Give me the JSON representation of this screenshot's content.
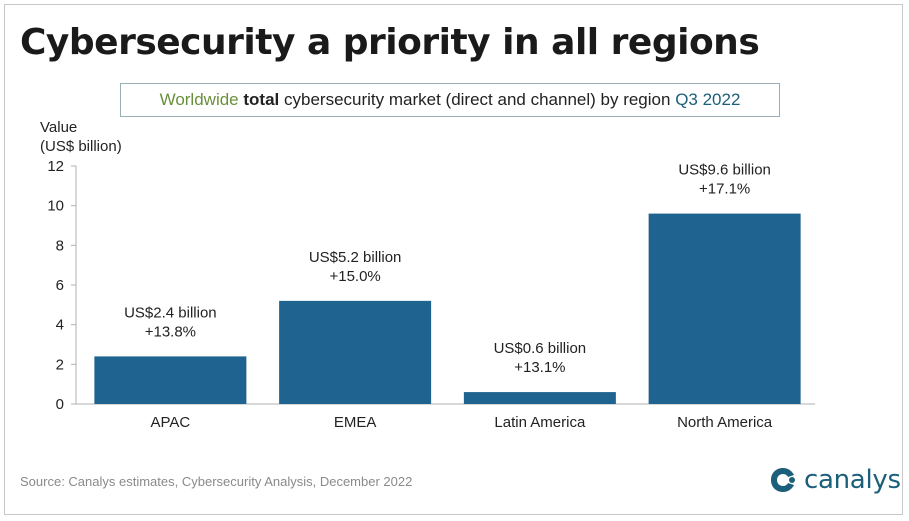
{
  "header": {
    "title": "Cybersecurity a priority in all regions"
  },
  "subtitle": {
    "part1": "Worldwide",
    "part2": "total",
    "part3": "cybersecurity market (direct and channel) by region",
    "part4": "Q3 2022"
  },
  "footer": {
    "source": "Source: Canalys estimates, Cybersecurity Analysis, December 2022",
    "logo_text": "canalys",
    "logo_icon": "canalys-swirl-icon"
  },
  "colors": {
    "bar": "#1f6390",
    "accent_green": "#6a8f3c",
    "accent_blue": "#1b5f7a"
  },
  "chart_data": {
    "type": "bar",
    "ylabel_line1": "Value",
    "ylabel_line2": "(US$ billion)",
    "ylim": [
      0,
      12
    ],
    "yticks": [
      0,
      2,
      4,
      6,
      8,
      10,
      12
    ],
    "grid": false,
    "categories": [
      "APAC",
      "EMEA",
      "Latin America",
      "North America"
    ],
    "values": [
      2.4,
      5.2,
      0.6,
      9.6
    ],
    "value_labels": [
      "US$2.4 billion",
      "US$5.2 billion",
      "US$0.6 billion",
      "US$9.6 billion"
    ],
    "growth_labels": [
      "+13.8%",
      "+15.0%",
      "+13.1%",
      "+17.1%"
    ]
  }
}
